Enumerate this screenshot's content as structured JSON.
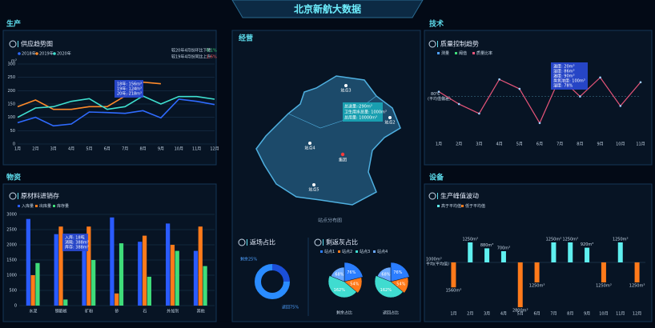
{
  "title": "北京新航大数据",
  "sections": [
    "生产",
    "物资",
    "经营",
    "技术",
    "设备"
  ],
  "chart_data": [
    {
      "type": "line",
      "title": "供应趋势图",
      "unit": "m³",
      "notes": [
        "较20年4月份环比下降",
        "0.1%",
        "较19年4月份同比上升",
        "1.6%"
      ],
      "categories": [
        "1月",
        "2月",
        "3月",
        "4月",
        "5月",
        "6月",
        "7月",
        "8月",
        "9月",
        "10月",
        "11月",
        "12月"
      ],
      "series": [
        {
          "name": "2018年",
          "color": "#2f6bff",
          "values": [
            80,
            100,
            68,
            75,
            120,
            118,
            115,
            125,
            98,
            168,
            160,
            148
          ]
        },
        {
          "name": "2019年",
          "color": "#ff8a2a",
          "values": [
            140,
            165,
            130,
            130,
            140,
            140,
            180,
            232,
            226,
            null,
            null,
            null
          ]
        },
        {
          "name": "2020年",
          "color": "#3fe0d0",
          "values": [
            100,
            135,
            140,
            160,
            170,
            130,
            140,
            180,
            150,
            178,
            178,
            168
          ]
        }
      ],
      "ylim": [
        0,
        300
      ],
      "yticks": [
        0,
        50,
        100,
        150,
        200,
        250,
        300
      ],
      "tooltip": [
        "18年: 156m³",
        "19年: 124m³",
        "20年: 218m³"
      ]
    },
    {
      "type": "bar",
      "title": "原材料进销存",
      "categories": [
        "水泥",
        "钢筋板",
        "矿粉",
        "砂",
        "石",
        "外加剂",
        "其他"
      ],
      "series": [
        {
          "name": "入库量",
          "color": "#2a5bff",
          "values": [
            2850,
            2350,
            2200,
            2900,
            2100,
            2700,
            1800
          ]
        },
        {
          "name": "出库量",
          "color": "#ff7a1a",
          "values": [
            1000,
            2600,
            2600,
            400,
            2300,
            2000,
            2600
          ]
        },
        {
          "name": "库存量",
          "color": "#3fdc7a",
          "values": [
            1400,
            200,
            1500,
            2050,
            950,
            1800,
            1300
          ]
        }
      ],
      "ylim": [
        0,
        3000
      ],
      "yticks": [
        0,
        500,
        1000,
        1500,
        2000,
        2500,
        3000
      ],
      "tooltip": [
        "入库: 18吨",
        "消耗: 388m³",
        "库存: 388m³"
      ]
    },
    {
      "type": "map",
      "title": "站点分布图",
      "center": "集团",
      "stations": [
        "站点1",
        "站点2",
        "站点3",
        "站点4",
        "站点5"
      ],
      "tooltip": [
        "总送量: 290m³",
        "卫生用水总量: 1000m³",
        "总用量: 10000m³"
      ]
    },
    {
      "type": "donut",
      "title": "返场占比",
      "categories": [
        "剩余",
        "返回"
      ],
      "values": [
        25,
        75
      ],
      "value_labels": [
        "剩余25%",
        "返回75%"
      ],
      "colors": [
        "#1b4fd8",
        "#2a8cff"
      ]
    },
    {
      "type": "pie",
      "title": "剩返灰占比",
      "legend": [
        "站点1",
        "站点2",
        "站点3",
        "站点4"
      ],
      "colors": [
        "#2a7dff",
        "#ff7a1a",
        "#3fdcd0",
        "#6aa8ff"
      ],
      "pies": [
        {
          "name": "剩余占比",
          "values": [
            76,
            54,
            162,
            68
          ],
          "value_labels": [
            "76%",
            "54%",
            "162%",
            "68%"
          ]
        },
        {
          "name": "返回占比",
          "values": [
            76,
            54,
            162,
            68
          ],
          "value_labels": [
            "76%",
            "54%",
            "162%",
            "68%"
          ]
        }
      ]
    },
    {
      "type": "line",
      "title": "质量控制趋势",
      "legend": [
        "测量",
        "阈值",
        "质量比率"
      ],
      "color": "#e8557a",
      "categories": [
        "1月",
        "2月",
        "3月",
        "4月",
        "5月",
        "6月",
        "7月",
        "8月",
        "9月",
        "10月",
        "11月"
      ],
      "values": [
        85,
        72,
        62,
        98,
        88,
        52,
        100,
        80,
        100,
        70,
        95
      ],
      "ylim": [
        40,
        110
      ],
      "ref": {
        "value": 80,
        "label": "80%"
      },
      "ref_note": "(平均值偏差)",
      "tooltip": [
        "温度: 20m³",
        "湿度: 86m³",
        "温度: 90m³",
        "臭氧浓度: 100m³",
        "湿度: 78%"
      ]
    },
    {
      "type": "bar",
      "title": "生产峰值波动",
      "note": [
        "1000m³",
        "平均(平均值)"
      ],
      "categories": [
        "1月",
        "2月",
        "3月",
        "4月",
        "5月",
        "6月",
        "7月",
        "8月",
        "9月",
        "10月",
        "11月",
        "12月"
      ],
      "series": [
        {
          "name": "高于平均值",
          "color": "#5ff0f0",
          "values": [
            null,
            1250,
            880,
            700,
            null,
            null,
            1250,
            1250,
            920,
            null,
            1250,
            null
          ],
          "value_labels": [
            null,
            "1250m³",
            "880m³",
            "700m³",
            null,
            null,
            "1250m³",
            "1250m³",
            "920m³",
            null,
            "1250m³",
            null
          ]
        },
        {
          "name": "低于平均值",
          "color": "#ff7a1a",
          "values": [
            1560,
            null,
            null,
            null,
            2800,
            1250,
            null,
            null,
            null,
            1250,
            null,
            1250
          ],
          "value_labels": [
            "1560m³",
            null,
            null,
            null,
            "2800m³",
            "1250m³",
            null,
            null,
            null,
            "1250m³",
            null,
            "1250m³"
          ]
        }
      ]
    }
  ]
}
